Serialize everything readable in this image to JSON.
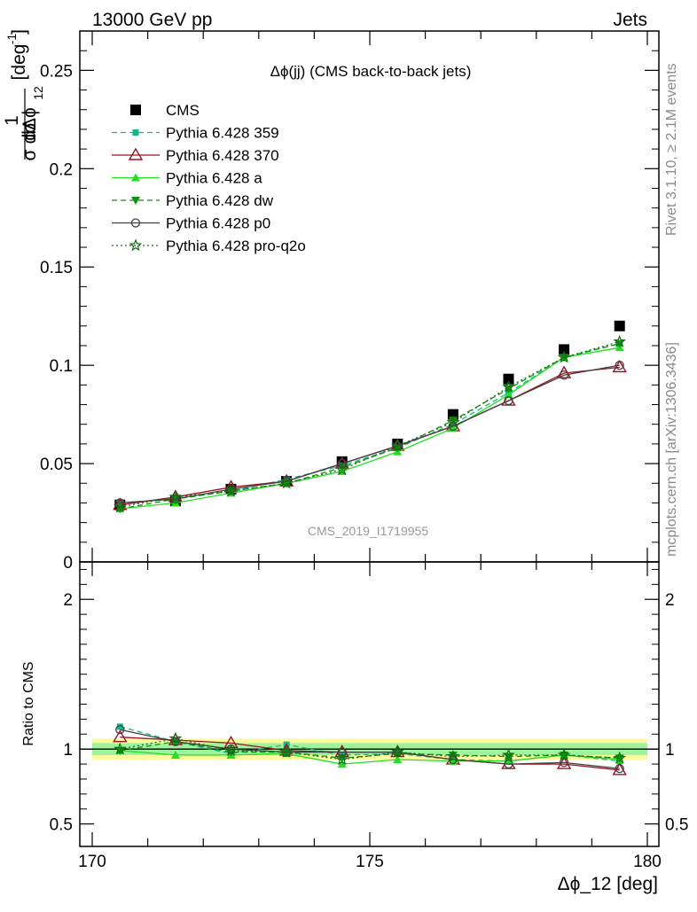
{
  "header": {
    "left": "13000 GeV pp",
    "right": "Jets"
  },
  "side_labels": {
    "rivet": "Rivet 3.1.10, ≥ 2.1M events",
    "source": "mcplots.cern.ch [arXiv:1306.3436]"
  },
  "watermark": "CMS_2019_I1719955",
  "chart_data": [
    {
      "type": "line",
      "title": "Δϕ(jj) (CMS back-to-back jets)",
      "ylabel": "1/σ dσ/dΔϕ_12 [deg^-1]",
      "ylabel_parts": {
        "num": "1",
        "num2": "dσ",
        "den": "σ",
        "den2": "dΔϕ",
        "sub": "12",
        "unit": "[deg",
        "unit_exp": "-1",
        "unit_close": "]"
      },
      "xlabel": "Δϕ_12 [deg]",
      "xlim": [
        170,
        180
      ],
      "ylim": [
        0,
        0.27
      ],
      "yticks": [
        0,
        0.05,
        0.1,
        0.15,
        0.2,
        0.25
      ],
      "ytick_labels": [
        "0",
        "0.05",
        "0.1",
        "0.15",
        "0.2",
        "0.25"
      ],
      "x": [
        170.5,
        171.5,
        172.5,
        173.5,
        174.5,
        175.5,
        176.5,
        177.5,
        178.5,
        179.5
      ],
      "series": [
        {
          "name": "CMS",
          "color": "#000000",
          "marker": "square",
          "line": "none",
          "values": [
            0.029,
            0.031,
            0.037,
            0.041,
            0.051,
            0.06,
            0.075,
            0.093,
            0.108,
            0.12
          ]
        },
        {
          "name": "Pythia 6.428 359",
          "color": "#19b48a",
          "marker": "square-small",
          "line": "dashed",
          "values": [
            0.03,
            0.032,
            0.036,
            0.042,
            0.049,
            0.058,
            0.07,
            0.086,
            0.104,
            0.111
          ]
        },
        {
          "name": "Pythia 6.428 370",
          "color": "#a01020",
          "marker": "triangle-open",
          "line": "solid",
          "values": [
            0.029,
            0.033,
            0.038,
            0.041,
            0.05,
            0.059,
            0.069,
            0.082,
            0.096,
            0.099
          ]
        },
        {
          "name": "Pythia 6.428 a",
          "color": "#20e020",
          "marker": "triangle",
          "line": "solid",
          "values": [
            0.027,
            0.03,
            0.035,
            0.04,
            0.046,
            0.056,
            0.068,
            0.085,
            0.104,
            0.109
          ]
        },
        {
          "name": "Pythia 6.428 dw",
          "color": "#109010",
          "marker": "triangle-down",
          "line": "dashed",
          "values": [
            0.027,
            0.032,
            0.036,
            0.04,
            0.048,
            0.058,
            0.072,
            0.088,
            0.104,
            0.111
          ]
        },
        {
          "name": "Pythia 6.428 p0",
          "color": "#404040",
          "marker": "circle-open",
          "line": "solid",
          "values": [
            0.03,
            0.032,
            0.037,
            0.041,
            0.05,
            0.059,
            0.069,
            0.082,
            0.095,
            0.1
          ]
        },
        {
          "name": "Pythia 6.428 pro-q2o",
          "color": "#107010",
          "marker": "star",
          "line": "dotted",
          "values": [
            0.028,
            0.033,
            0.036,
            0.04,
            0.047,
            0.059,
            0.071,
            0.089,
            0.104,
            0.112
          ]
        }
      ]
    },
    {
      "type": "line",
      "ylabel": "Ratio to CMS",
      "xlim": [
        170,
        180
      ],
      "ylim": [
        0.35,
        2.25
      ],
      "yticks": [
        0.5,
        1,
        2
      ],
      "ytick_labels": [
        "0.5",
        "1",
        "2"
      ],
      "xticks": [
        170,
        175,
        180
      ],
      "xtick_labels": [
        "170",
        "175",
        "180"
      ],
      "band_inner": [
        0.96,
        1.04
      ],
      "band_outer": [
        0.93,
        1.07
      ],
      "x": [
        170.5,
        171.5,
        172.5,
        173.5,
        174.5,
        175.5,
        176.5,
        177.5,
        178.5,
        179.5
      ],
      "series": [
        {
          "name": "Pythia 6.428 359",
          "values": [
            1.15,
            1.05,
            0.97,
            1.03,
            0.96,
            0.97,
            0.93,
            0.92,
            0.96,
            0.92
          ]
        },
        {
          "name": "Pythia 6.428 370",
          "values": [
            1.08,
            1.06,
            1.04,
            0.99,
            0.98,
            0.98,
            0.93,
            0.9,
            0.9,
            0.86
          ]
        },
        {
          "name": "Pythia 6.428 a",
          "values": [
            0.99,
            0.96,
            0.96,
            0.97,
            0.9,
            0.93,
            0.92,
            0.92,
            0.96,
            0.93
          ]
        },
        {
          "name": "Pythia 6.428 dw",
          "values": [
            0.99,
            1.05,
            0.98,
            0.98,
            0.94,
            0.97,
            0.96,
            0.95,
            0.96,
            0.94
          ]
        },
        {
          "name": "Pythia 6.428 p0",
          "values": [
            1.13,
            1.05,
            1.0,
            0.98,
            0.98,
            0.98,
            0.93,
            0.9,
            0.91,
            0.87
          ]
        },
        {
          "name": "Pythia 6.428 pro-q2o",
          "values": [
            1.0,
            1.07,
            0.99,
            0.98,
            0.93,
            0.98,
            0.95,
            0.96,
            0.96,
            0.94
          ]
        }
      ]
    }
  ]
}
